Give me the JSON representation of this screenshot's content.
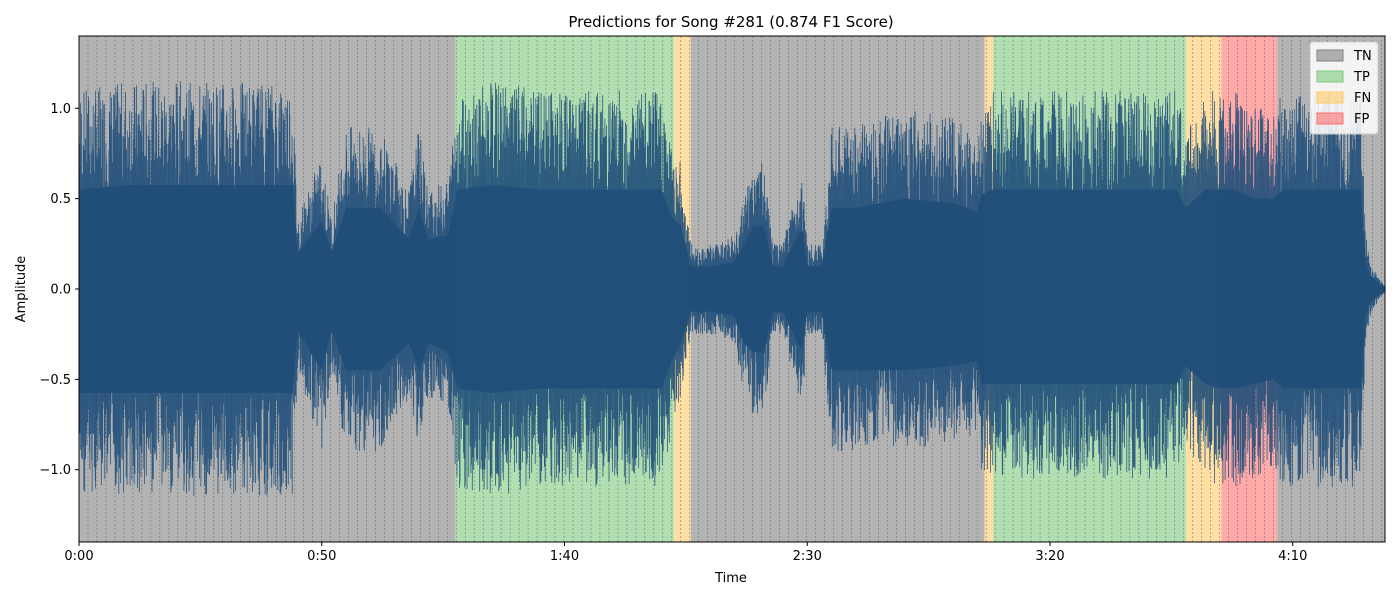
{
  "chart_data": {
    "type": "area",
    "title": "Predictions for Song #281 (0.874 F1 Score)",
    "xlabel": "Time",
    "ylabel": "Amplitude",
    "xlim": [
      0,
      269
    ],
    "ylim": [
      -1.4,
      1.4
    ],
    "x_ticks": [
      {
        "value": 0,
        "label": "0:00"
      },
      {
        "value": 50,
        "label": "0:50"
      },
      {
        "value": 100,
        "label": "1:40"
      },
      {
        "value": 150,
        "label": "2:30"
      },
      {
        "value": 200,
        "label": "3:20"
      },
      {
        "value": 250,
        "label": "4:10"
      }
    ],
    "y_ticks": [
      {
        "value": 1.0,
        "label": "1.0"
      },
      {
        "value": 0.5,
        "label": "0.5"
      },
      {
        "value": 0.0,
        "label": "0.0"
      },
      {
        "value": -0.5,
        "label": "−0.5"
      },
      {
        "value": -1.0,
        "label": "−1.0"
      }
    ],
    "grid": false,
    "legend_position": "top-right",
    "legend": [
      {
        "label": "TN",
        "color": "#808080"
      },
      {
        "label": "TP",
        "color": "#7fc97f"
      },
      {
        "label": "FN",
        "color": "#ffc966"
      },
      {
        "label": "FP",
        "color": "#ff6f6f"
      }
    ],
    "regions": [
      {
        "label": "TN",
        "start": 0,
        "end": 77.5
      },
      {
        "label": "TP",
        "start": 77.5,
        "end": 122.5
      },
      {
        "label": "FN",
        "start": 122.5,
        "end": 126
      },
      {
        "label": "TN",
        "start": 126,
        "end": 186.5
      },
      {
        "label": "FN",
        "start": 186.5,
        "end": 188.3
      },
      {
        "label": "TP",
        "start": 188.3,
        "end": 228
      },
      {
        "label": "FN",
        "start": 228,
        "end": 235.3
      },
      {
        "label": "FP",
        "start": 235.3,
        "end": 246.8
      },
      {
        "label": "TN",
        "start": 246.8,
        "end": 269
      }
    ],
    "beat_interval": 1.85,
    "waveform_color": "#1f4e79",
    "waveform_envelope": {
      "x": [
        0,
        10,
        20,
        30,
        40,
        44,
        45,
        50,
        52,
        55,
        60,
        62,
        68,
        70,
        72,
        76,
        78,
        85,
        95,
        100,
        105,
        110,
        115,
        120,
        122,
        124,
        126,
        130,
        135,
        137,
        139,
        141,
        143,
        145,
        148,
        149,
        150,
        153,
        155,
        160,
        170,
        180,
        185,
        186,
        188,
        190,
        200,
        210,
        220,
        226,
        228,
        232,
        235,
        238,
        242,
        246,
        248,
        252,
        258,
        264,
        265,
        266,
        267,
        268,
        269
      ],
      "upper": [
        1.1,
        1.15,
        1.15,
        1.15,
        1.15,
        1.15,
        0.4,
        0.75,
        0.4,
        0.9,
        0.9,
        0.9,
        0.55,
        0.9,
        0.55,
        0.6,
        1.1,
        1.15,
        1.1,
        1.1,
        1.1,
        1.1,
        1.1,
        1.1,
        0.8,
        0.7,
        0.25,
        0.25,
        0.3,
        0.5,
        0.7,
        0.7,
        0.25,
        0.25,
        0.6,
        0.65,
        0.25,
        0.25,
        0.9,
        0.9,
        1.0,
        0.95,
        0.85,
        1.05,
        1.1,
        1.1,
        1.1,
        1.1,
        1.1,
        1.1,
        0.9,
        1.1,
        1.1,
        1.1,
        1.0,
        1.0,
        1.1,
        1.1,
        1.1,
        1.1,
        0.3,
        0.15,
        0.1,
        0.05,
        0.02
      ],
      "lower": [
        -1.15,
        -1.15,
        -1.15,
        -1.15,
        -1.15,
        -1.15,
        -0.45,
        -0.9,
        -0.45,
        -0.9,
        -0.9,
        -0.9,
        -0.6,
        -0.9,
        -0.6,
        -0.7,
        -1.1,
        -1.15,
        -1.1,
        -1.1,
        -1.1,
        -1.1,
        -1.1,
        -1.1,
        -0.8,
        -0.6,
        -0.25,
        -0.25,
        -0.3,
        -0.6,
        -0.7,
        -0.7,
        -0.25,
        -0.25,
        -0.6,
        -0.65,
        -0.25,
        -0.25,
        -0.9,
        -0.9,
        -0.9,
        -0.85,
        -0.8,
        -1.05,
        -1.05,
        -1.05,
        -1.05,
        -1.05,
        -1.05,
        -1.05,
        -0.85,
        -1.05,
        -1.1,
        -1.1,
        -1.05,
        -1.0,
        -1.1,
        -1.1,
        -1.1,
        -1.1,
        -0.3,
        -0.15,
        -0.1,
        -0.05,
        -0.02
      ]
    }
  }
}
